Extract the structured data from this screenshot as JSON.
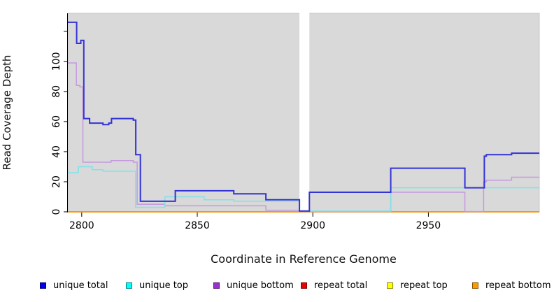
{
  "chart_data": {
    "type": "line",
    "subtype": "step-coverage",
    "title": "",
    "xlabel": "Coordinate in Reference Genome",
    "ylabel": "Read Coverage Depth",
    "xlim": [
      2794,
      2998
    ],
    "ylim": [
      0,
      132
    ],
    "xticks": [
      2800,
      2850,
      2900,
      2950
    ],
    "xtick_labels": [
      "2800",
      "2850",
      "2900",
      "2950"
    ],
    "yticks": [
      0,
      20,
      40,
      60,
      80,
      100,
      120
    ],
    "ytick_labels": [
      "0",
      "20",
      "40",
      "60",
      "80",
      "100",
      ""
    ],
    "panel_background": "#d9d9d9",
    "panel_edge": "#c6c6c6",
    "gap_region": {
      "x0": 2894.2,
      "x1": 2898.5,
      "color": "#ffffff"
    },
    "grid": false,
    "legend_position": "bottom",
    "series": [
      {
        "name": "repeat total",
        "color": "#dd0000",
        "width": 1.5,
        "points": [
          [
            2794,
            0
          ]
        ]
      },
      {
        "name": "repeat top",
        "color": "#ffff00",
        "width": 1.5,
        "points": [
          [
            2794,
            0
          ]
        ]
      },
      {
        "name": "repeat bottom",
        "color": "#ff9400",
        "width": 1.8,
        "points": [
          [
            2794,
            0
          ]
        ]
      },
      {
        "name": "unique bottom",
        "color": "#c49ade",
        "width": 1.5,
        "points": [
          [
            2794,
            99
          ],
          [
            2797.7,
            84
          ],
          [
            2799.2,
            83
          ],
          [
            2800.5,
            33
          ],
          [
            2812.7,
            34
          ],
          [
            2822.3,
            33
          ],
          [
            2824,
            5
          ],
          [
            2836,
            4
          ],
          [
            2879.7,
            1
          ],
          [
            2894.2,
            0.2
          ],
          [
            2933.7,
            13
          ],
          [
            2965.8,
            0.2
          ],
          [
            2973.9,
            20
          ],
          [
            2975.1,
            21
          ],
          [
            2986,
            23
          ]
        ]
      },
      {
        "name": "unique top",
        "color": "#7fe2e9",
        "width": 1.5,
        "points": [
          [
            2794,
            26
          ],
          [
            2798.6,
            30
          ],
          [
            2804.6,
            28
          ],
          [
            2809.2,
            27
          ],
          [
            2823.3,
            3
          ],
          [
            2836,
            10
          ],
          [
            2853,
            8
          ],
          [
            2865.8,
            7
          ],
          [
            2894.2,
            0.5
          ],
          [
            2933.7,
            16
          ]
        ]
      },
      {
        "name": "unique total",
        "color": "#3333d6",
        "width": 2,
        "points": [
          [
            2794,
            126
          ],
          [
            2797.8,
            112
          ],
          [
            2799.6,
            114
          ],
          [
            2800.9,
            62
          ],
          [
            2803.4,
            59
          ],
          [
            2809.2,
            58
          ],
          [
            2811.7,
            59
          ],
          [
            2812.9,
            62
          ],
          [
            2822.3,
            61
          ],
          [
            2823.4,
            38
          ],
          [
            2825.4,
            7
          ],
          [
            2840.5,
            14
          ],
          [
            2865.8,
            12
          ],
          [
            2879.7,
            8
          ],
          [
            2894.2,
            0.5
          ],
          [
            2898.5,
            13
          ],
          [
            2933.7,
            29
          ],
          [
            2965.8,
            16
          ],
          [
            2974.2,
            37
          ],
          [
            2975.1,
            38
          ],
          [
            2986,
            39
          ]
        ]
      }
    ]
  },
  "labels": {
    "xlabel": "Coordinate in Reference Genome",
    "ylabel": "Read Coverage Depth"
  },
  "legend": {
    "items": [
      {
        "label": "unique total",
        "color": "#0000ee"
      },
      {
        "label": "unique top",
        "color": "#00ffff"
      },
      {
        "label": "unique bottom",
        "color": "#9b30d0"
      },
      {
        "label": "repeat total",
        "color": "#ee0000"
      },
      {
        "label": "repeat top",
        "color": "#ffff00"
      },
      {
        "label": "repeat bottom",
        "color": "#ff9900"
      }
    ]
  }
}
